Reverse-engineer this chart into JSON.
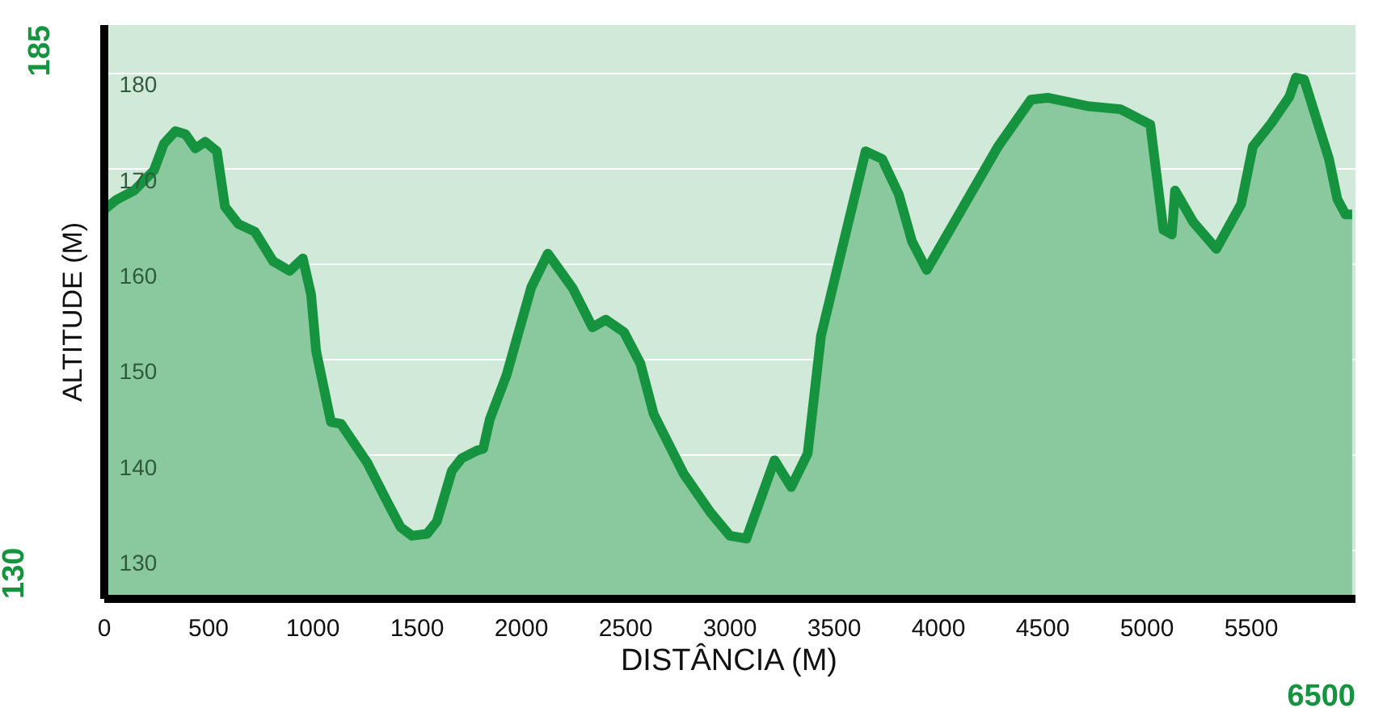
{
  "chart_data": {
    "type": "area",
    "xlabel": "DISTÂNCIA (M)",
    "ylabel": "ALTITUDE (M)",
    "xlim": [
      0,
      6000
    ],
    "ylim": [
      125,
      185
    ],
    "xticks": [
      0,
      500,
      1000,
      1500,
      2000,
      2500,
      3000,
      3500,
      4000,
      4500,
      5000,
      5500
    ],
    "yticks": [
      130,
      140,
      150,
      160,
      170,
      180
    ],
    "grid": "y",
    "annotations": [
      "185",
      "130",
      "6500"
    ],
    "series": [
      {
        "color": "#15933e",
        "x": [
          0,
          56,
          143,
          238,
          286,
          341,
          389,
          437,
          484,
          540,
          579,
          643,
          722,
          810,
          889,
          952,
          992,
          1016,
          1087,
          1135,
          1262,
          1365,
          1421,
          1476,
          1548,
          1595,
          1667,
          1714,
          1786,
          1817,
          1849,
          1929,
          2048,
          2127,
          2246,
          2341,
          2405,
          2492,
          2571,
          2635,
          2778,
          2905,
          3000,
          3079,
          3214,
          3294,
          3373,
          3437,
          3532,
          3651,
          3730,
          3810,
          3873,
          3944,
          4111,
          4286,
          4444,
          4524,
          4722,
          4873,
          5016,
          5079,
          5119,
          5135,
          5222,
          5333,
          5452,
          5508,
          5595,
          5683,
          5714,
          5754,
          5873,
          5913,
          5952,
          5984
        ],
        "values": [
          165.7,
          166.7,
          167.7,
          169.8,
          172.6,
          173.9,
          173.6,
          172.1,
          172.8,
          171.8,
          166,
          164.2,
          163.4,
          160.3,
          159.3,
          160.6,
          156.8,
          150.9,
          143.5,
          143.3,
          139.2,
          134.8,
          132.5,
          131.6,
          131.8,
          133.1,
          138.4,
          139.7,
          140.5,
          140.7,
          143.8,
          148.4,
          157.6,
          161.1,
          157.5,
          153.4,
          154.2,
          152.9,
          149.6,
          144.3,
          138.1,
          134.1,
          131.6,
          131.3,
          139.5,
          136.7,
          140.2,
          152.5,
          161.1,
          171.8,
          171,
          167.3,
          162.4,
          159.4,
          165.7,
          172.3,
          177.2,
          177.4,
          176.5,
          176.2,
          174.6,
          163.6,
          163.1,
          167.7,
          164.4,
          161.6,
          166.3,
          172.3,
          174.7,
          177.5,
          179.5,
          179.3,
          171,
          166.8,
          165.2,
          165.2
        ]
      }
    ]
  }
}
